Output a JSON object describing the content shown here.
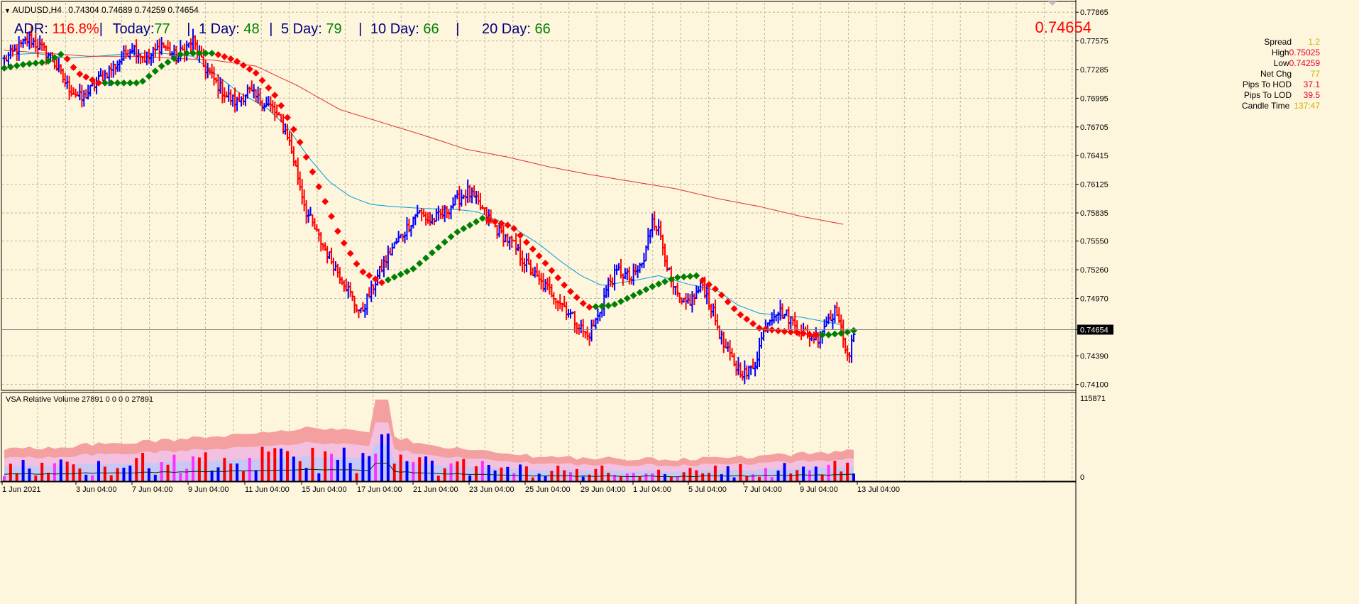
{
  "header": {
    "symbol": "AUDUSD,H4",
    "ohlc": "0.74304 0.74689 0.74259 0.74654"
  },
  "adr_bar": {
    "adr_label": "ADR:",
    "adr_value": "116.8%",
    "sep1": "|",
    "today_label": "Today:",
    "today_value": "77",
    "sep2": "|",
    "day1_label": "1 Day:",
    "day1_value": "48",
    "sep3": "|",
    "day5_label": "5 Day:",
    "day5_value": "79",
    "sep4": "|",
    "day10_label": "10 Day:",
    "day10_value": "66",
    "sep5": "|",
    "day20_label": "20 Day:",
    "day20_value": "66"
  },
  "info_panel": {
    "price": "0.74654",
    "rows": [
      {
        "label": "Spread",
        "value": "1.2"
      },
      {
        "label": "High",
        "value": "0.75025"
      },
      {
        "label": "Low",
        "value": "0.74259"
      },
      {
        "label": "Net Chg",
        "value": "77"
      },
      {
        "label": "Pips To HOD",
        "value": "37.1"
      },
      {
        "label": "Pips To LOD",
        "value": "39.5"
      },
      {
        "label": "Candle Time",
        "value": "137:47"
      }
    ]
  },
  "colors": {
    "background": "#fdf5dc",
    "grid": "#b8b8a0",
    "bull": "#0000ff",
    "bear": "#ff0000",
    "dot_up": "#008000",
    "dot_down": "#ff0000",
    "ma_fast": "#00a0e0",
    "ma_slow": "#e03030",
    "vol_outer": "#f4a0a0",
    "vol_mid": "#f4c0e0",
    "vol_inner": "#c8c8f4",
    "vol_bear": "#ff0000",
    "vol_bull": "#0000ff",
    "vol_magenta": "#ff30ff",
    "adr_red": "#ff0000",
    "adr_green": "#008000",
    "adr_label": "#000080",
    "info_gold": "#d4b000",
    "info_red": "#ff0000"
  },
  "chart_data": {
    "type": "candlestick",
    "price_axis": {
      "ticks": [
        "0.77865",
        "0.77575",
        "0.77285",
        "0.76995",
        "0.76705",
        "0.76415",
        "0.76125",
        "0.75835",
        "0.75550",
        "0.75260",
        "0.74970",
        "0.74654",
        "0.74390",
        "0.74100"
      ],
      "ylim": [
        0.7404,
        0.7796
      ],
      "current_price": "0.74654"
    },
    "time_axis": {
      "labels": [
        "1 Jun 2021",
        "3 Jun 04:00",
        "7 Jun 04:00",
        "9 Jun 04:00",
        "11 Jun 04:00",
        "15 Jun 04:00",
        "17 Jun 04:00",
        "21 Jun 04:00",
        "23 Jun 04:00",
        "25 Jun 04:00",
        "29 Jun 04:00",
        "1 Jul 04:00",
        "5 Jul 04:00",
        "7 Jul 04:00",
        "9 Jul 04:00",
        "13 Jul 04:00"
      ]
    },
    "price_path": [
      [
        0,
        0.7738
      ],
      [
        12,
        0.776
      ],
      [
        22,
        0.7742
      ],
      [
        30,
        0.7712
      ],
      [
        37,
        0.7698
      ],
      [
        45,
        0.7718
      ],
      [
        54,
        0.7735
      ],
      [
        61,
        0.7752
      ],
      [
        68,
        0.7738
      ],
      [
        75,
        0.7754
      ],
      [
        82,
        0.7741
      ],
      [
        90,
        0.7758
      ],
      [
        94,
        0.7735
      ],
      [
        100,
        0.7718
      ],
      [
        106,
        0.7702
      ],
      [
        111,
        0.7695
      ],
      [
        116,
        0.7707
      ],
      [
        120,
        0.77
      ],
      [
        128,
        0.7689
      ],
      [
        135,
        0.7663
      ],
      [
        140,
        0.762
      ],
      [
        144,
        0.7585
      ],
      [
        150,
        0.7558
      ],
      [
        157,
        0.7532
      ],
      [
        163,
        0.751
      ],
      [
        167,
        0.7492
      ],
      [
        170,
        0.7482
      ],
      [
        175,
        0.7505
      ],
      [
        180,
        0.7528
      ],
      [
        185,
        0.7548
      ],
      [
        191,
        0.7565
      ],
      [
        197,
        0.7585
      ],
      [
        203,
        0.7575
      ],
      [
        209,
        0.7582
      ],
      [
        215,
        0.7595
      ],
      [
        221,
        0.7605
      ],
      [
        226,
        0.7592
      ],
      [
        231,
        0.7578
      ],
      [
        236,
        0.7564
      ],
      [
        242,
        0.7553
      ],
      [
        248,
        0.7534
      ],
      [
        255,
        0.7514
      ],
      [
        261,
        0.7503
      ],
      [
        267,
        0.7489
      ],
      [
        273,
        0.7472
      ],
      [
        278,
        0.7458
      ],
      [
        283,
        0.7478
      ],
      [
        288,
        0.7512
      ],
      [
        293,
        0.7525
      ],
      [
        299,
        0.7516
      ],
      [
        305,
        0.7535
      ],
      [
        309,
        0.758
      ],
      [
        313,
        0.756
      ],
      [
        318,
        0.7512
      ],
      [
        323,
        0.749
      ],
      [
        328,
        0.7496
      ],
      [
        333,
        0.7511
      ],
      [
        338,
        0.7482
      ],
      [
        343,
        0.7449
      ],
      [
        349,
        0.7428
      ],
      [
        354,
        0.742
      ],
      [
        358,
        0.7432
      ],
      [
        363,
        0.7472
      ],
      [
        368,
        0.7485
      ],
      [
        373,
        0.748
      ],
      [
        378,
        0.7468
      ],
      [
        383,
        0.746
      ],
      [
        388,
        0.7458
      ],
      [
        393,
        0.7478
      ],
      [
        397,
        0.7485
      ],
      [
        400,
        0.7452
      ],
      [
        403,
        0.7442
      ],
      [
        406,
        0.7465
      ]
    ],
    "ma_fast": [
      [
        0,
        0.7743
      ],
      [
        15,
        0.7745
      ],
      [
        30,
        0.774
      ],
      [
        45,
        0.7742
      ],
      [
        60,
        0.7745
      ],
      [
        75,
        0.7745
      ],
      [
        90,
        0.7742
      ],
      [
        100,
        0.7725
      ],
      [
        112,
        0.7705
      ],
      [
        125,
        0.769
      ],
      [
        135,
        0.767
      ],
      [
        145,
        0.764
      ],
      [
        155,
        0.7615
      ],
      [
        165,
        0.76
      ],
      [
        175,
        0.7592
      ],
      [
        185,
        0.759
      ],
      [
        200,
        0.7588
      ],
      [
        215,
        0.7587
      ],
      [
        225,
        0.7585
      ],
      [
        240,
        0.7572
      ],
      [
        255,
        0.7552
      ],
      [
        265,
        0.7535
      ],
      [
        275,
        0.752
      ],
      [
        285,
        0.751
      ],
      [
        300,
        0.7515
      ],
      [
        312,
        0.752
      ],
      [
        325,
        0.7512
      ],
      [
        340,
        0.7505
      ],
      [
        350,
        0.749
      ],
      [
        360,
        0.7482
      ],
      [
        370,
        0.748
      ],
      [
        380,
        0.7478
      ],
      [
        390,
        0.7474
      ],
      [
        400,
        0.747
      ]
    ],
    "ma_slow": [
      [
        0,
        0.7748
      ],
      [
        20,
        0.7745
      ],
      [
        40,
        0.7742
      ],
      [
        60,
        0.7742
      ],
      [
        80,
        0.774
      ],
      [
        100,
        0.7738
      ],
      [
        120,
        0.7732
      ],
      [
        140,
        0.7712
      ],
      [
        160,
        0.7688
      ],
      [
        180,
        0.7675
      ],
      [
        200,
        0.7662
      ],
      [
        220,
        0.7648
      ],
      [
        240,
        0.764
      ],
      [
        260,
        0.763
      ],
      [
        280,
        0.7622
      ],
      [
        300,
        0.7615
      ],
      [
        320,
        0.7608
      ],
      [
        340,
        0.7598
      ],
      [
        360,
        0.759
      ],
      [
        380,
        0.758
      ],
      [
        400,
        0.7572
      ]
    ],
    "dots": [
      [
        0,
        0.773
      ],
      [
        10,
        0.7734
      ],
      [
        20,
        0.7736
      ],
      [
        28,
        0.7745
      ],
      [
        35,
        0.7725
      ],
      [
        45,
        0.7715
      ],
      [
        55,
        0.7715
      ],
      [
        65,
        0.7715
      ],
      [
        75,
        0.7732
      ],
      [
        85,
        0.7745
      ],
      [
        100,
        0.7745
      ],
      [
        110,
        0.7738
      ],
      [
        120,
        0.7725
      ],
      [
        130,
        0.77
      ],
      [
        140,
        0.766
      ],
      [
        150,
        0.761
      ],
      [
        160,
        0.756
      ],
      [
        170,
        0.7525
      ],
      [
        180,
        0.7513
      ],
      [
        195,
        0.7527
      ],
      [
        205,
        0.7545
      ],
      [
        215,
        0.7563
      ],
      [
        228,
        0.7578
      ],
      [
        242,
        0.757
      ],
      [
        255,
        0.754
      ],
      [
        268,
        0.7508
      ],
      [
        278,
        0.7488
      ],
      [
        290,
        0.749
      ],
      [
        300,
        0.75
      ],
      [
        310,
        0.751
      ],
      [
        320,
        0.7518
      ],
      [
        330,
        0.752
      ],
      [
        340,
        0.7505
      ],
      [
        350,
        0.7482
      ],
      [
        360,
        0.7467
      ],
      [
        370,
        0.7464
      ],
      [
        380,
        0.7462
      ],
      [
        385,
        0.746
      ],
      [
        392,
        0.746
      ],
      [
        400,
        0.7462
      ],
      [
        406,
        0.7465
      ]
    ],
    "candle_count": 406,
    "volume": {
      "indicator": "VSA Relative Volume 27891 0 0 0 0 27891",
      "max_label": "115871",
      "min_label": "0"
    }
  }
}
